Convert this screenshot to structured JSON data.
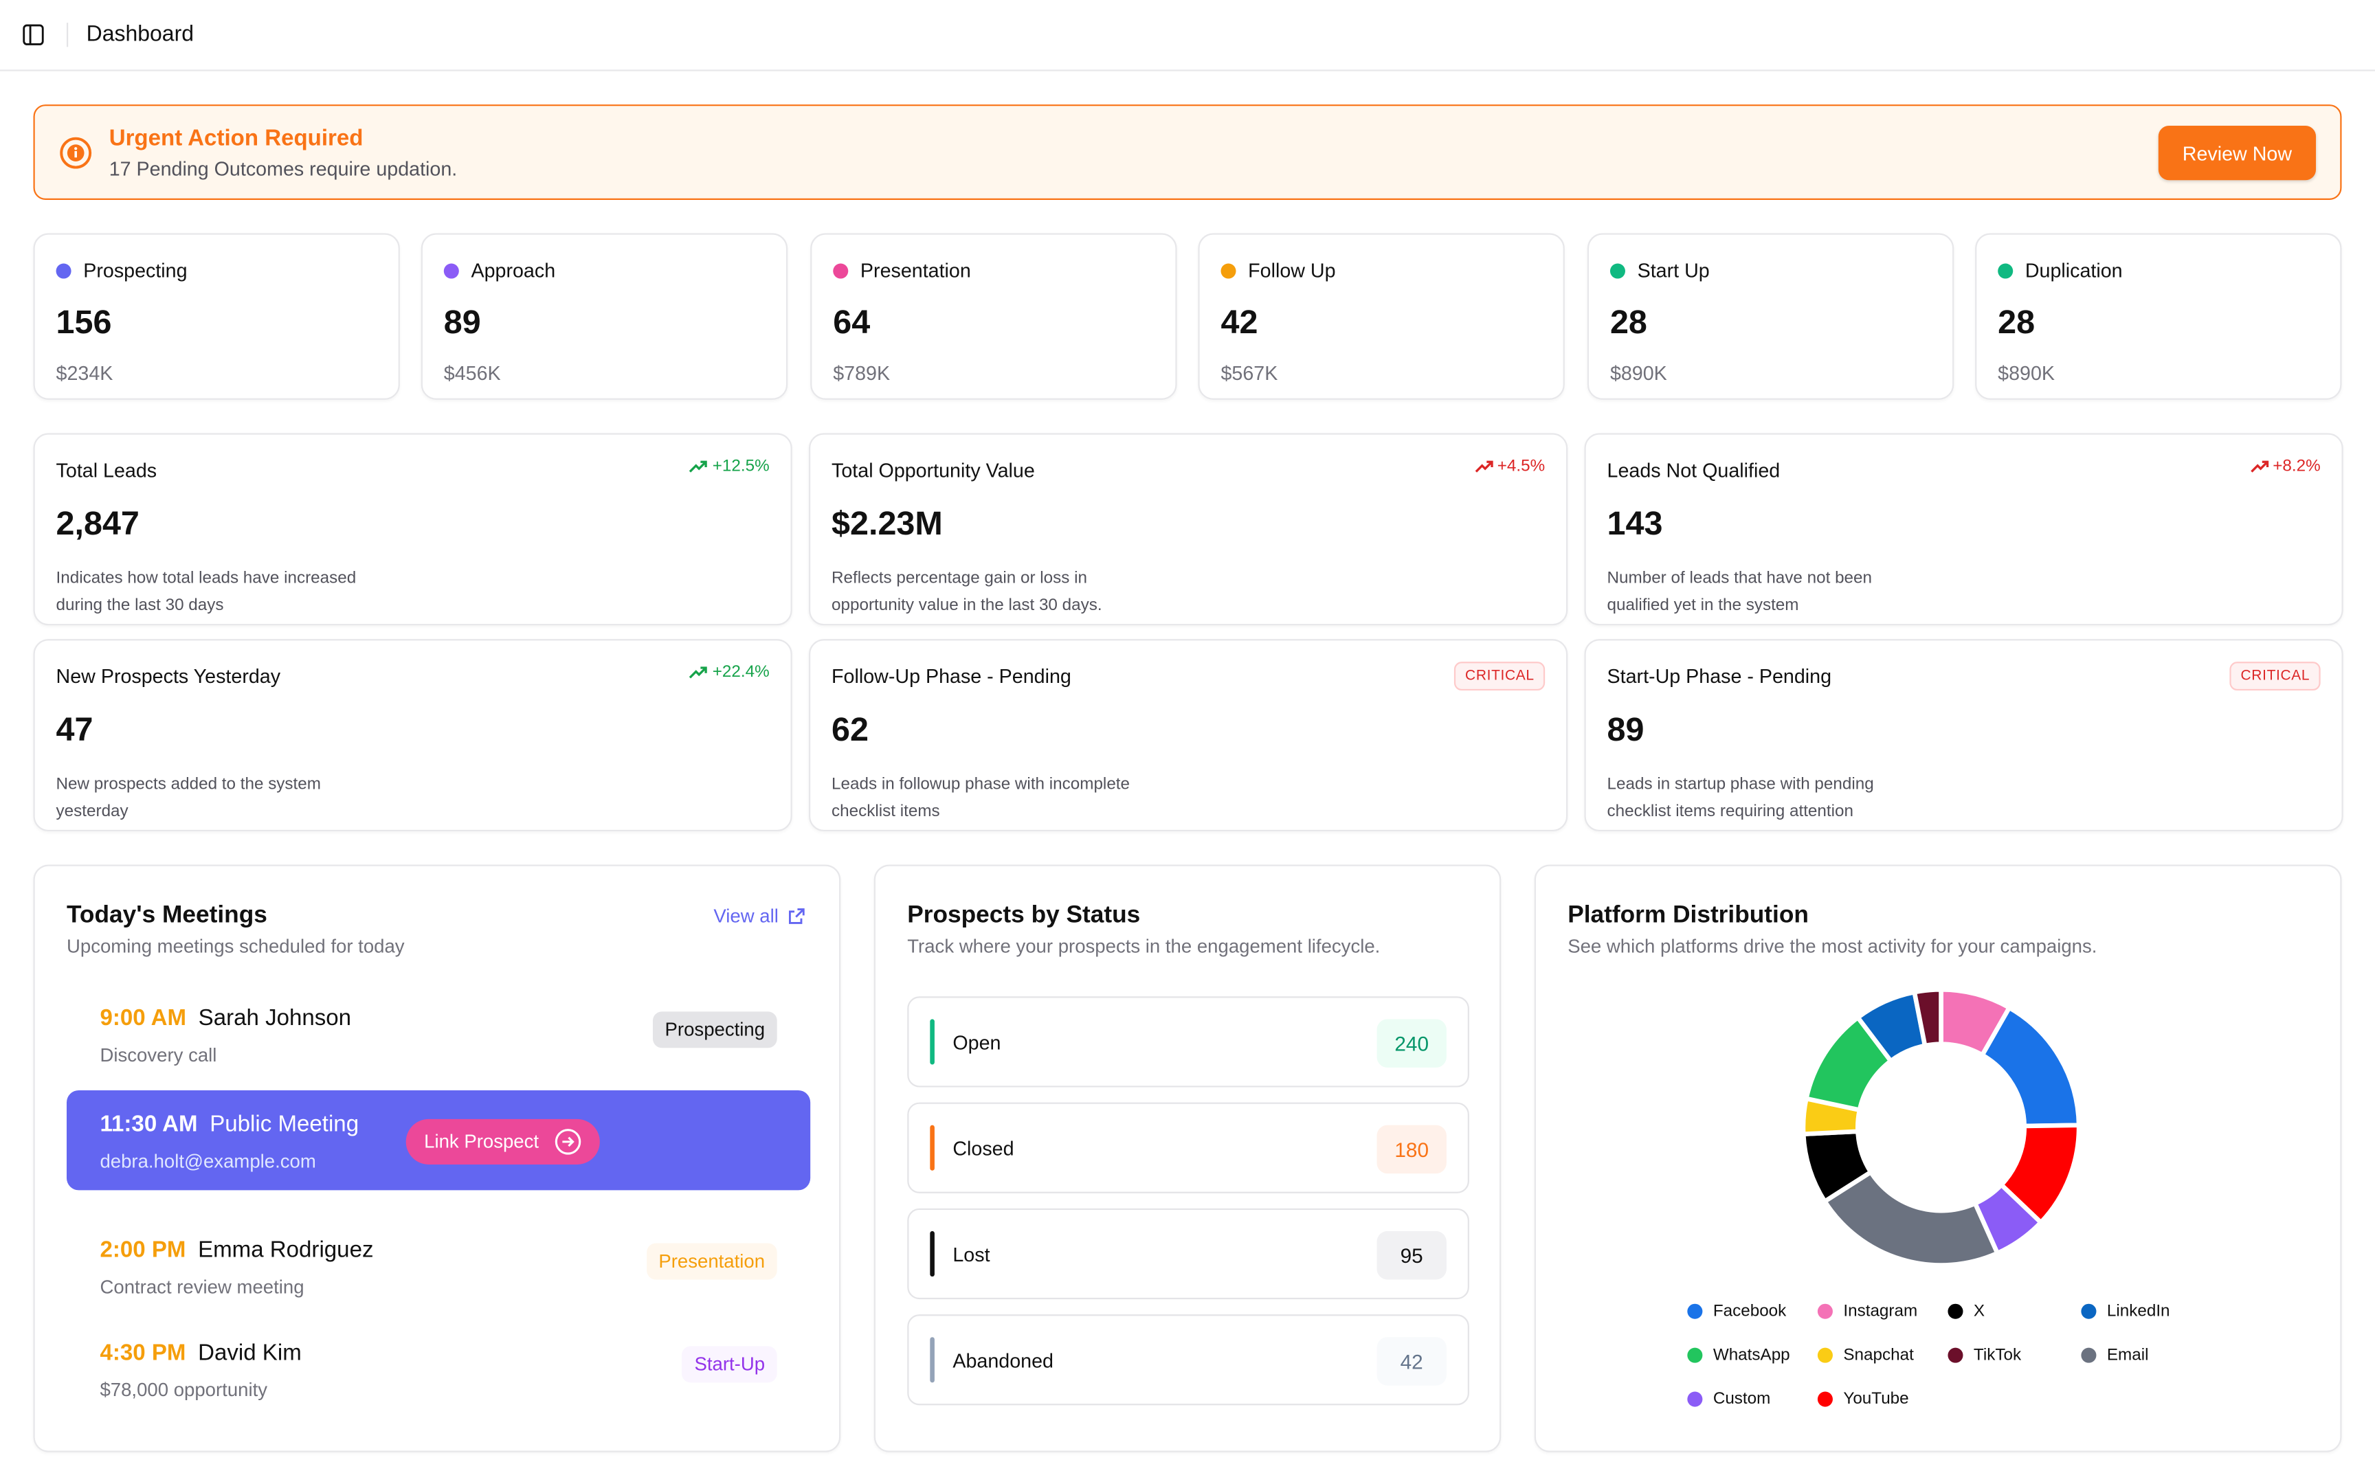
{
  "header": {
    "title": "Dashboard"
  },
  "alert": {
    "title": "Urgent Action Required",
    "message": "17 Pending Outcomes require updation.",
    "button": "Review Now"
  },
  "stages": [
    {
      "name": "Prospecting",
      "count": "156",
      "value": "$234K",
      "color": "#6366f1"
    },
    {
      "name": "Approach",
      "count": "89",
      "value": "$456K",
      "color": "#8b5cf6"
    },
    {
      "name": "Presentation",
      "count": "64",
      "value": "$789K",
      "color": "#ec4899"
    },
    {
      "name": "Follow Up",
      "count": "42",
      "value": "$567K",
      "color": "#f59e0b"
    },
    {
      "name": "Start Up",
      "count": "28",
      "value": "$890K",
      "color": "#10b981"
    },
    {
      "name": "Duplication",
      "count": "28",
      "value": "$890K",
      "color": "#10b981"
    }
  ],
  "metrics": [
    {
      "title": "Total Leads",
      "value": "2,847",
      "desc": "Indicates how total leads have increased during the last 30 days",
      "trend": "+12.5%"
    },
    {
      "title": "Total Opportunity Value",
      "value": "$2.23M",
      "desc": "Reflects percentage gain or loss in opportunity value in the last 30 days.",
      "trend": "+4.5%"
    },
    {
      "title": "Leads Not Qualified",
      "value": "143",
      "desc": "Number of leads that have not been qualified yet in the system",
      "trend": "+8.2%"
    },
    {
      "title": "New Prospects Yesterday",
      "value": "47",
      "desc": "New prospects added to the system yesterday",
      "trend": "+22.4%"
    },
    {
      "title": "Follow-Up Phase - Pending",
      "value": "62",
      "desc": "Leads in followup phase with incomplete checklist items",
      "badge": "CRITICAL"
    },
    {
      "title": "Start-Up Phase - Pending",
      "value": "89",
      "desc": "Leads in startup phase with pending checklist items requiring attention",
      "badge": "CRITICAL"
    }
  ],
  "meetings": {
    "title": "Today's Meetings",
    "subtitle": "Upcoming meetings scheduled for today",
    "view_all": "View all",
    "items": [
      {
        "time": "9:00 AM",
        "name": "Sarah Johnson",
        "desc": "Discovery call",
        "badge": "Prospecting"
      },
      {
        "time": "11:30 AM",
        "name": "Public Meeting",
        "desc": "debra.holt@example.com",
        "action": "Link Prospect"
      },
      {
        "time": "2:00 PM",
        "name": "Emma Rodriguez",
        "desc": "Contract review meeting",
        "badge": "Presentation"
      },
      {
        "time": "4:30 PM",
        "name": "David Kim",
        "desc": "$78,000 opportunity",
        "badge": "Start-Up"
      }
    ]
  },
  "prospects_status": {
    "title": "Prospects by Status",
    "subtitle": "Track where your prospects in the engagement lifecycle.",
    "items": [
      {
        "label": "Open",
        "count": "240",
        "color": "#10b981"
      },
      {
        "label": "Closed",
        "count": "180",
        "color": "#f97316"
      },
      {
        "label": "Lost",
        "count": "95",
        "color": "#111111"
      },
      {
        "label": "Abandoned",
        "count": "42",
        "color": "#94a3b8"
      }
    ]
  },
  "platform": {
    "title": "Platform Distribution",
    "subtitle": "See which platforms drive the most activity for your campaigns."
  },
  "chart_data": {
    "type": "pie",
    "title": "Platform Distribution",
    "categories": [
      "Facebook",
      "Instagram",
      "X",
      "LinkedIn",
      "WhatsApp",
      "Snapchat",
      "TikTok",
      "Email",
      "Custom",
      "YouTube"
    ],
    "values": [
      16,
      8,
      8,
      7,
      11,
      4,
      3,
      22,
      6,
      12
    ],
    "colors": [
      "#1a73e8",
      "#f472b6",
      "#000000",
      "#0a66c2",
      "#22c55e",
      "#facc15",
      "#6b0f2a",
      "#6b7280",
      "#8b5cf6",
      "#ff0000"
    ],
    "legend": "bottom"
  }
}
